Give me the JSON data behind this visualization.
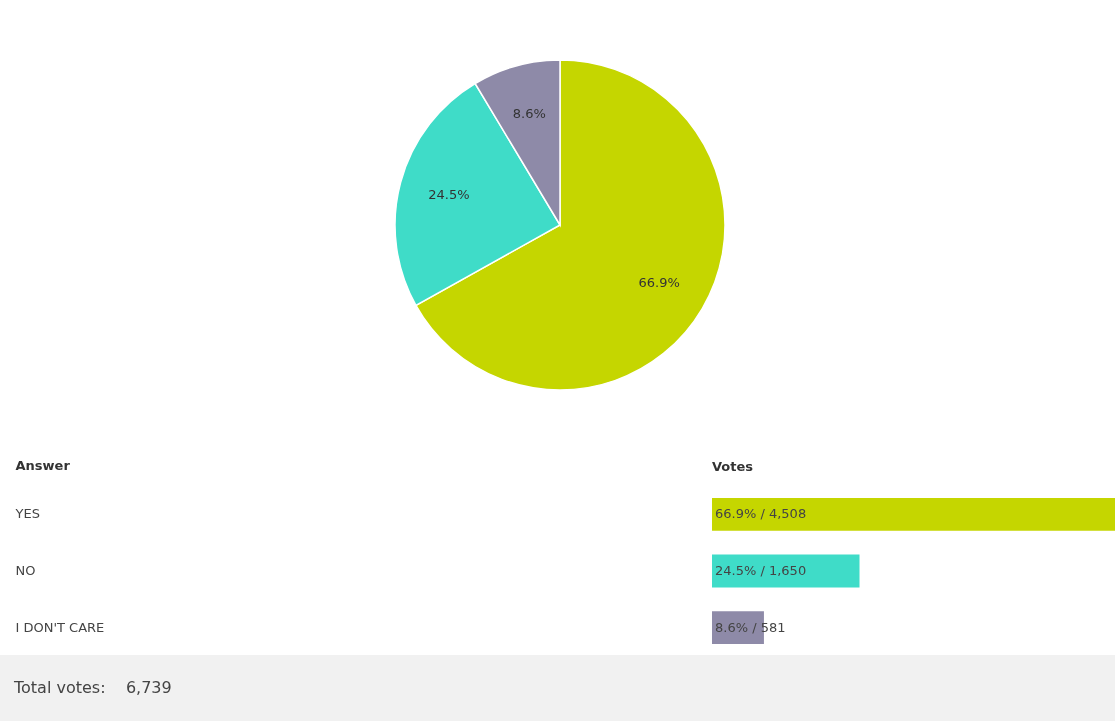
{
  "chart_data": [
    {
      "type": "pie",
      "categories": [
        null,
        null,
        null
      ],
      "values": [
        66.9,
        24.5,
        8.6
      ],
      "colors": [
        "#c5d600",
        "#3fdcc8",
        "#8e8aa8"
      ],
      "value_labels": [
        "66.9%",
        "24.5%",
        "8.6%"
      ]
    },
    {
      "type": "bar",
      "orientation": "horizontal",
      "ylabel": "Answer",
      "xlabel": "Votes",
      "categories": [
        "YES",
        "NO",
        "I DON'T CARE"
      ],
      "values": [
        4508,
        1650,
        581
      ],
      "colors": [
        "#c5d600",
        "#3fdcc8",
        "#8e8aa8"
      ],
      "value_labels": [
        "66.9% / 4,508",
        "24.5% / 1,650",
        "8.6% / 581"
      ],
      "annotations": [
        "Total votes:    6,739"
      ]
    }
  ]
}
